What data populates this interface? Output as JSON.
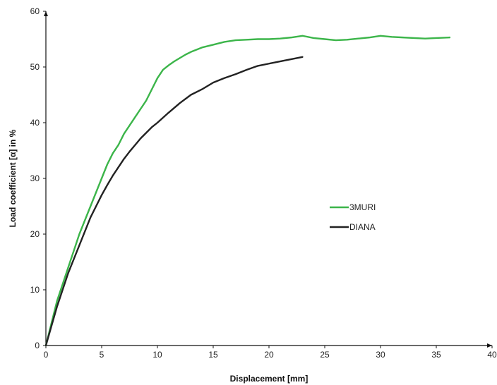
{
  "chart_data": {
    "type": "line",
    "xlabel": "Displacement [mm]",
    "ylabel": "Load coefficient [α] in %",
    "xlim": [
      0,
      40
    ],
    "ylim": [
      0,
      60
    ],
    "xticks": [
      "0",
      "5",
      "10",
      "15",
      "20",
      "25",
      "30",
      "35",
      "40"
    ],
    "yticks": [
      "0",
      "10",
      "20",
      "30",
      "40",
      "50",
      "60"
    ],
    "grid": false,
    "legend_position": "right-middle",
    "series": [
      {
        "name": "3MURI",
        "color": "#3cb54a",
        "x": [
          0,
          0.5,
          1,
          1.5,
          2,
          2.5,
          3,
          3.5,
          4,
          4.5,
          5,
          5.5,
          6,
          6.5,
          7,
          7.5,
          8,
          8.5,
          9,
          9.5,
          10,
          10.5,
          11,
          11.5,
          12,
          12.5,
          13,
          13.5,
          14,
          15,
          16,
          17,
          18,
          19,
          20,
          21,
          22,
          23,
          24,
          25,
          26,
          27,
          28,
          29,
          30,
          31,
          32,
          33,
          34,
          35,
          36.2
        ],
        "y": [
          0,
          4,
          8,
          11,
          14,
          17,
          20,
          22.5,
          25,
          27.5,
          30,
          32.5,
          34.5,
          36,
          38,
          39.5,
          41,
          42.5,
          44,
          46,
          48,
          49.5,
          50.3,
          51,
          51.6,
          52.2,
          52.7,
          53.1,
          53.5,
          54,
          54.5,
          54.8,
          54.9,
          55,
          55,
          55.1,
          55.3,
          55.6,
          55.2,
          55,
          54.8,
          54.9,
          55.1,
          55.3,
          55.6,
          55.4,
          55.3,
          55.2,
          55.1,
          55.2,
          55.3
        ]
      },
      {
        "name": "DIANA",
        "color": "#222222",
        "x": [
          0,
          0.5,
          1,
          1.5,
          2,
          2.5,
          3,
          3.5,
          4,
          4.5,
          5,
          5.5,
          6,
          6.5,
          7,
          7.5,
          8,
          8.5,
          9,
          9.5,
          10,
          11,
          12,
          13,
          14,
          15,
          16,
          17,
          18,
          19,
          20,
          21,
          22,
          23
        ],
        "y": [
          0,
          3.5,
          7,
          10,
          13,
          15.5,
          18,
          20.5,
          23,
          25,
          27,
          28.8,
          30.5,
          32,
          33.5,
          34.8,
          36,
          37.2,
          38.2,
          39.2,
          40,
          41.8,
          43.5,
          45,
          46,
          47.2,
          48,
          48.7,
          49.5,
          50.2,
          50.6,
          51,
          51.4,
          51.8
        ]
      }
    ]
  }
}
